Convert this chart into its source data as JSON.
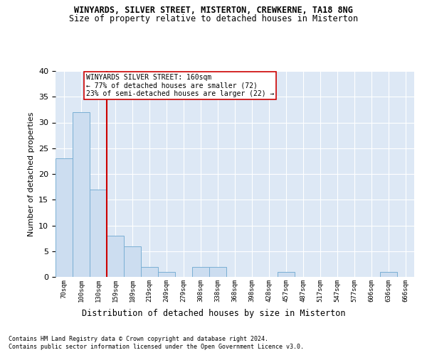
{
  "title1": "WINYARDS, SILVER STREET, MISTERTON, CREWKERNE, TA18 8NG",
  "title2": "Size of property relative to detached houses in Misterton",
  "xlabel": "Distribution of detached houses by size in Misterton",
  "ylabel": "Number of detached properties",
  "bar_color": "#ccddf0",
  "bar_edge_color": "#7aafd4",
  "background_color": "#dde8f5",
  "annotation_box_color": "#cc0000",
  "vline_color": "#cc0000",
  "vline_x_index": 3,
  "annotation_text_line1": "WINYARDS SILVER STREET: 160sqm",
  "annotation_text_line2": "← 77% of detached houses are smaller (72)",
  "annotation_text_line3": "23% of semi-detached houses are larger (22) →",
  "categories": [
    "70sqm",
    "100sqm",
    "130sqm",
    "159sqm",
    "189sqm",
    "219sqm",
    "249sqm",
    "279sqm",
    "308sqm",
    "338sqm",
    "368sqm",
    "398sqm",
    "428sqm",
    "457sqm",
    "487sqm",
    "517sqm",
    "547sqm",
    "577sqm",
    "606sqm",
    "636sqm",
    "666sqm"
  ],
  "values": [
    23,
    32,
    17,
    8,
    6,
    2,
    1,
    0,
    2,
    2,
    0,
    0,
    0,
    1,
    0,
    0,
    0,
    0,
    0,
    1,
    0
  ],
  "ylim": [
    0,
    40
  ],
  "yticks": [
    0,
    5,
    10,
    15,
    20,
    25,
    30,
    35,
    40
  ],
  "footnote1": "Contains HM Land Registry data © Crown copyright and database right 2024.",
  "footnote2": "Contains public sector information licensed under the Open Government Licence v3.0."
}
